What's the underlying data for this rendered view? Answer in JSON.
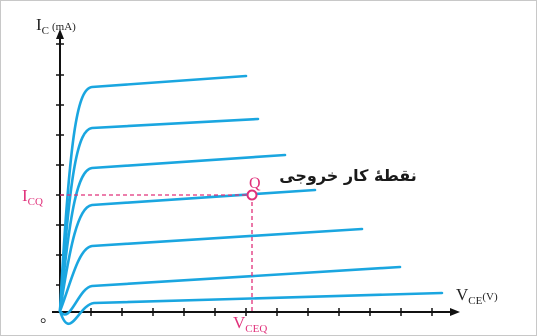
{
  "chart_data": {
    "type": "line",
    "title": "",
    "y_axis": {
      "symbol": "I",
      "subscript": "C",
      "unit": "(mA)"
    },
    "x_axis": {
      "symbol": "V",
      "subscript": "CE",
      "unit": "(V)"
    },
    "origin_label": "°",
    "operating_point": {
      "label": "Q",
      "annotation": "نقطهٔ کار خروجی",
      "i_label": {
        "symbol": "I",
        "subscript": "CQ"
      },
      "v_label": {
        "symbol": "V",
        "subscript": "CEQ"
      }
    },
    "series_count": 7,
    "colors": {
      "curves": "#1aa6e0",
      "axes": "#111111",
      "guides": "#e0307a",
      "q_point": "#e0307a"
    }
  }
}
